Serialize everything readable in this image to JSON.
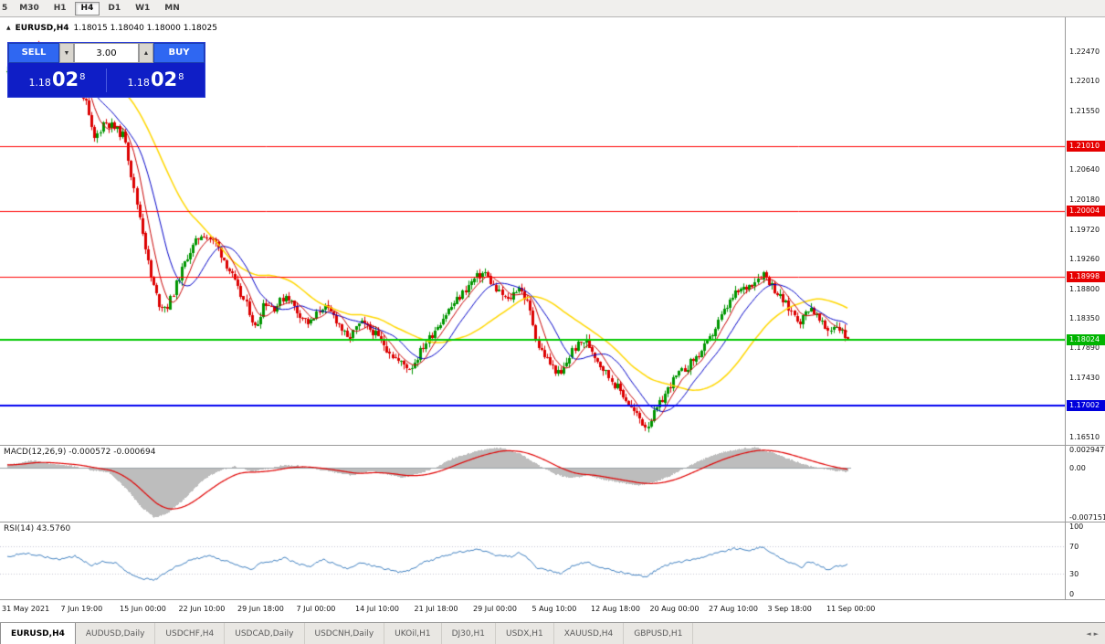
{
  "toolbar": {
    "clipped_label": "5",
    "timeframes": [
      {
        "label": "M30",
        "active": false
      },
      {
        "label": "H1",
        "active": false
      },
      {
        "label": "H4",
        "active": true
      },
      {
        "label": "D1",
        "active": false
      },
      {
        "label": "W1",
        "active": false
      },
      {
        "label": "MN",
        "active": false
      }
    ]
  },
  "quote_bar": {
    "marker": "▲",
    "symbol_period": "EURUSD,H4",
    "ohlc": "1.18015 1.18040 1.18000 1.18025"
  },
  "trade_panel": {
    "sell_label": "SELL",
    "buy_label": "BUY",
    "lot_value": "3.00",
    "spin_down_icon": "▼",
    "spin_up_icon": "▲",
    "sell_price": {
      "big_prefix": "1.18",
      "big": "02",
      "sup": "8"
    },
    "buy_price": {
      "big_prefix": "1.18",
      "big": "02",
      "sup": "8"
    }
  },
  "indicators": {
    "macd_label": "MACD(12,26,9) -0.000572 -0.000694",
    "rsi_label": "RSI(14) 43.5760"
  },
  "tab_scroll": {
    "left_icon": "◄",
    "right_icon": "►"
  },
  "tabs": [
    {
      "label": "EURUSD,H4",
      "active": true
    },
    {
      "label": "AUDUSD,Daily",
      "active": false
    },
    {
      "label": "USDCHF,H4",
      "active": false
    },
    {
      "label": "USDCAD,Daily",
      "active": false
    },
    {
      "label": "USDCNH,Daily",
      "active": false
    },
    {
      "label": "UKOil,H1",
      "active": false
    },
    {
      "label": "DJ30,H1",
      "active": false
    },
    {
      "label": "USDX,H1",
      "active": false
    },
    {
      "label": "XAUUSD,H4",
      "active": false
    },
    {
      "label": "GBPUSD,H1",
      "active": false
    }
  ],
  "chart_data": {
    "type": "candlestick",
    "symbol": "EURUSD",
    "timeframe": "H4",
    "current_quote": {
      "open": 1.18015,
      "high": 1.1804,
      "low": 1.18,
      "close": 1.18025
    },
    "last_price": 1.18025,
    "price_axis": {
      "top": 1.23,
      "bottom": 1.164,
      "ticks": [
        {
          "label": "1.22470",
          "price": 1.2247
        },
        {
          "label": "1.22010",
          "price": 1.2201
        },
        {
          "label": "1.21550",
          "price": 1.2155
        },
        {
          "label": "1.20640",
          "price": 1.2064
        },
        {
          "label": "1.20180",
          "price": 1.2018
        },
        {
          "label": "1.19720",
          "price": 1.1972
        },
        {
          "label": "1.19260",
          "price": 1.1926
        },
        {
          "label": "1.18800",
          "price": 1.188
        },
        {
          "label": "1.18350",
          "price": 1.1835
        },
        {
          "label": "1.17890",
          "price": 1.1789
        },
        {
          "label": "1.17430",
          "price": 1.1743
        },
        {
          "label": "1.16510",
          "price": 1.1651
        }
      ]
    },
    "badges": [
      {
        "label": "1.21010",
        "price": 1.2101,
        "bg": "#e60000",
        "fg": "#ffffff"
      },
      {
        "label": "1.20004",
        "price": 1.20004,
        "bg": "#e60000",
        "fg": "#ffffff"
      },
      {
        "label": "1.18998",
        "price": 1.18998,
        "bg": "#e60000",
        "fg": "#ffffff"
      },
      {
        "label": "1.18024",
        "price": 1.18024,
        "bg": "#00b400",
        "fg": "#ffffff"
      },
      {
        "label": "1.17002",
        "price": 1.17002,
        "bg": "#0000dc",
        "fg": "#ffffff"
      }
    ],
    "hlines": [
      {
        "price": 1.2101,
        "color": "#ff0000",
        "width": 1
      },
      {
        "price": 1.20004,
        "color": "#ff0000",
        "width": 1
      },
      {
        "price": 1.18998,
        "color": "#ff0000",
        "width": 1
      },
      {
        "price": 1.18024,
        "color": "#00c800",
        "width": 2
      },
      {
        "price": 1.17002,
        "color": "#0000f0",
        "width": 2
      }
    ],
    "time_labels": [
      "31 May 2021",
      "7 Jun 19:00",
      "15 Jun 00:00",
      "22 Jun 10:00",
      "29 Jun 18:00",
      "7 Jul 00:00",
      "14 Jul 10:00",
      "21 Jul 18:00",
      "29 Jul 00:00",
      "5 Aug 10:00",
      "12 Aug 18:00",
      "20 Aug 00:00",
      "27 Aug 10:00",
      "3 Sep 18:00",
      "11 Sep 00:00"
    ],
    "price_path": [
      [
        0.0,
        1.2215
      ],
      [
        0.01,
        1.2245
      ],
      [
        0.022,
        1.2232
      ],
      [
        0.035,
        1.2255
      ],
      [
        0.05,
        1.2228
      ],
      [
        0.065,
        1.2195
      ],
      [
        0.08,
        1.221
      ],
      [
        0.092,
        1.2175
      ],
      [
        0.103,
        1.211
      ],
      [
        0.115,
        1.214
      ],
      [
        0.128,
        1.2128
      ],
      [
        0.14,
        1.2115
      ],
      [
        0.15,
        1.2035
      ],
      [
        0.16,
        1.1975
      ],
      [
        0.17,
        1.19
      ],
      [
        0.18,
        1.1858
      ],
      [
        0.19,
        1.1852
      ],
      [
        0.2,
        1.1885
      ],
      [
        0.215,
        1.1935
      ],
      [
        0.232,
        1.1968
      ],
      [
        0.248,
        1.195
      ],
      [
        0.262,
        1.1915
      ],
      [
        0.275,
        1.1878
      ],
      [
        0.287,
        1.1848
      ],
      [
        0.295,
        1.1818
      ],
      [
        0.305,
        1.1862
      ],
      [
        0.318,
        1.1852
      ],
      [
        0.332,
        1.1872
      ],
      [
        0.345,
        1.1845
      ],
      [
        0.36,
        1.1826
      ],
      [
        0.375,
        1.1855
      ],
      [
        0.39,
        1.1836
      ],
      [
        0.405,
        1.1802
      ],
      [
        0.42,
        1.1828
      ],
      [
        0.435,
        1.1815
      ],
      [
        0.45,
        1.1792
      ],
      [
        0.465,
        1.1768
      ],
      [
        0.48,
        1.1758
      ],
      [
        0.495,
        1.1792
      ],
      [
        0.51,
        1.1822
      ],
      [
        0.525,
        1.1848
      ],
      [
        0.54,
        1.1872
      ],
      [
        0.555,
        1.1896
      ],
      [
        0.568,
        1.1906
      ],
      [
        0.582,
        1.1878
      ],
      [
        0.596,
        1.1862
      ],
      [
        0.608,
        1.1886
      ],
      [
        0.62,
        1.1856
      ],
      [
        0.632,
        1.1792
      ],
      [
        0.645,
        1.1766
      ],
      [
        0.658,
        1.1746
      ],
      [
        0.672,
        1.1786
      ],
      [
        0.688,
        1.1802
      ],
      [
        0.702,
        1.1772
      ],
      [
        0.715,
        1.1746
      ],
      [
        0.73,
        1.1722
      ],
      [
        0.745,
        1.1692
      ],
      [
        0.76,
        1.1668
      ],
      [
        0.775,
        1.17
      ],
      [
        0.79,
        1.1736
      ],
      [
        0.805,
        1.1756
      ],
      [
        0.82,
        1.1776
      ],
      [
        0.835,
        1.18
      ],
      [
        0.85,
        1.184
      ],
      [
        0.865,
        1.1872
      ],
      [
        0.882,
        1.1886
      ],
      [
        0.9,
        1.1906
      ],
      [
        0.915,
        1.1876
      ],
      [
        0.93,
        1.185
      ],
      [
        0.944,
        1.183
      ],
      [
        0.955,
        1.1856
      ],
      [
        0.966,
        1.1832
      ],
      [
        0.976,
        1.1816
      ],
      [
        0.987,
        1.1826
      ],
      [
        1.0,
        1.18025
      ]
    ],
    "macd": {
      "name": "MACD(12,26,9)",
      "current_main": -0.000572,
      "current_signal": -0.000694,
      "range": {
        "top": 0.00305,
        "bottom": -0.00745
      },
      "axis_ticks": [
        {
          "label": "0.002947",
          "value": 0.002947
        },
        {
          "label": "0.00",
          "value": 0
        },
        {
          "label": "-0.007151",
          "value": -0.007151
        }
      ],
      "path": [
        [
          0.0,
          0.0004
        ],
        [
          0.03,
          0.001
        ],
        [
          0.05,
          0.0006
        ],
        [
          0.08,
          0.0002
        ],
        [
          0.1,
          -0.0004
        ],
        [
          0.12,
          -0.0007
        ],
        [
          0.14,
          -0.0028
        ],
        [
          0.16,
          -0.0056
        ],
        [
          0.175,
          -0.007
        ],
        [
          0.19,
          -0.0064
        ],
        [
          0.21,
          -0.0044
        ],
        [
          0.23,
          -0.002
        ],
        [
          0.25,
          -0.0005
        ],
        [
          0.27,
          0.0002
        ],
        [
          0.29,
          -0.0006
        ],
        [
          0.31,
          -0.0002
        ],
        [
          0.33,
          0.0004
        ],
        [
          0.35,
          0.0002
        ],
        [
          0.37,
          -0.0003
        ],
        [
          0.39,
          -0.0007
        ],
        [
          0.41,
          -0.0011
        ],
        [
          0.43,
          -0.0005
        ],
        [
          0.45,
          -0.0009
        ],
        [
          0.47,
          -0.0014
        ],
        [
          0.49,
          -0.0009
        ],
        [
          0.51,
          0.0001
        ],
        [
          0.53,
          0.0013
        ],
        [
          0.56,
          0.0024
        ],
        [
          0.585,
          0.0028
        ],
        [
          0.61,
          0.0019
        ],
        [
          0.63,
          0.0005
        ],
        [
          0.65,
          -0.0009
        ],
        [
          0.67,
          -0.0015
        ],
        [
          0.69,
          -0.0011
        ],
        [
          0.71,
          -0.0017
        ],
        [
          0.73,
          -0.0021
        ],
        [
          0.75,
          -0.0025
        ],
        [
          0.77,
          -0.0021
        ],
        [
          0.79,
          -0.0011
        ],
        [
          0.81,
          0.0002
        ],
        [
          0.83,
          0.0013
        ],
        [
          0.85,
          0.0021
        ],
        [
          0.87,
          0.0026
        ],
        [
          0.89,
          0.0028
        ],
        [
          0.91,
          0.0021
        ],
        [
          0.93,
          0.0012
        ],
        [
          0.95,
          0.0004
        ],
        [
          0.97,
          -0.0002
        ],
        [
          0.985,
          -0.0005
        ],
        [
          1.0,
          -0.000572
        ]
      ]
    },
    "rsi": {
      "name": "RSI(14)",
      "current": 43.576,
      "levels": [
        70,
        30
      ],
      "axis_ticks": [
        {
          "label": "100",
          "value": 100
        },
        {
          "label": "70",
          "value": 70
        },
        {
          "label": "30",
          "value": 30
        },
        {
          "label": "0",
          "value": 0
        }
      ],
      "path": [
        [
          0.0,
          55
        ],
        [
          0.02,
          60
        ],
        [
          0.04,
          56
        ],
        [
          0.06,
          51
        ],
        [
          0.08,
          56
        ],
        [
          0.1,
          42
        ],
        [
          0.115,
          48
        ],
        [
          0.13,
          45
        ],
        [
          0.145,
          30
        ],
        [
          0.16,
          23
        ],
        [
          0.175,
          20
        ],
        [
          0.19,
          33
        ],
        [
          0.21,
          46
        ],
        [
          0.225,
          52
        ],
        [
          0.24,
          56
        ],
        [
          0.26,
          48
        ],
        [
          0.28,
          40
        ],
        [
          0.29,
          35
        ],
        [
          0.3,
          46
        ],
        [
          0.32,
          49
        ],
        [
          0.33,
          53
        ],
        [
          0.345,
          44
        ],
        [
          0.36,
          40
        ],
        [
          0.375,
          51
        ],
        [
          0.39,
          44
        ],
        [
          0.405,
          36
        ],
        [
          0.42,
          46
        ],
        [
          0.435,
          42
        ],
        [
          0.45,
          37
        ],
        [
          0.465,
          32
        ],
        [
          0.48,
          35
        ],
        [
          0.495,
          46
        ],
        [
          0.51,
          52
        ],
        [
          0.525,
          58
        ],
        [
          0.54,
          62
        ],
        [
          0.56,
          66
        ],
        [
          0.58,
          57
        ],
        [
          0.6,
          55
        ],
        [
          0.61,
          61
        ],
        [
          0.62,
          52
        ],
        [
          0.63,
          38
        ],
        [
          0.645,
          34
        ],
        [
          0.66,
          30
        ],
        [
          0.675,
          43
        ],
        [
          0.69,
          47
        ],
        [
          0.7,
          40
        ],
        [
          0.715,
          36
        ],
        [
          0.73,
          32
        ],
        [
          0.745,
          28
        ],
        [
          0.76,
          25
        ],
        [
          0.775,
          37
        ],
        [
          0.79,
          45
        ],
        [
          0.805,
          48
        ],
        [
          0.82,
          52
        ],
        [
          0.835,
          57
        ],
        [
          0.85,
          62
        ],
        [
          0.865,
          67
        ],
        [
          0.88,
          64
        ],
        [
          0.9,
          69
        ],
        [
          0.915,
          56
        ],
        [
          0.93,
          47
        ],
        [
          0.945,
          39
        ],
        [
          0.955,
          48
        ],
        [
          0.966,
          42
        ],
        [
          0.976,
          36
        ],
        [
          0.987,
          40
        ],
        [
          1.0,
          43.576
        ]
      ]
    },
    "colors": {
      "up": "#009600",
      "down": "#dc0000",
      "ma_fast": "#c80000",
      "ma_mid": "#0000c8",
      "ma_slow": "#ffd700",
      "macd_hist": "#bdbdbd",
      "macd_signal": "#e00000",
      "rsi_line": "#4080c0"
    }
  }
}
